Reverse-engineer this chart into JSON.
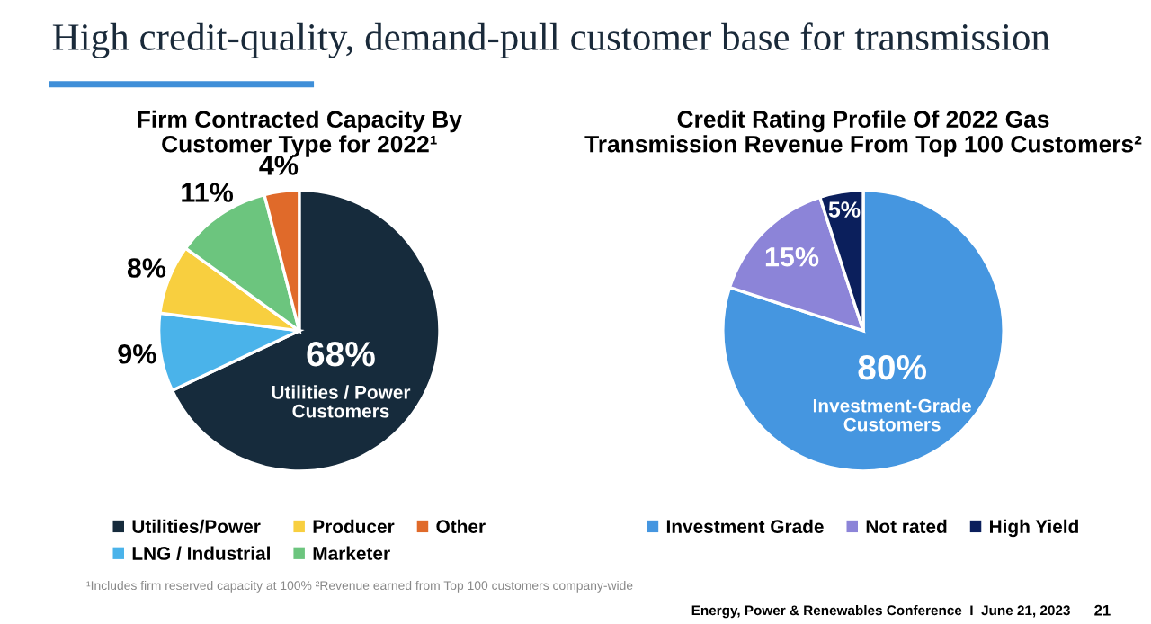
{
  "chart_data": [
    {
      "type": "pie",
      "title": "Firm Contracted Capacity By\nCustomer Type for 2022¹",
      "categories": [
        "Utilities/Power",
        "LNG / Industrial",
        "Producer",
        "Marketer",
        "Other"
      ],
      "values": [
        68,
        9,
        8,
        11,
        4
      ],
      "colors": [
        "#162b3c",
        "#4ab3ea",
        "#f8cf3f",
        "#6cc57e",
        "#e06a2a"
      ],
      "value_labels": [
        "68%",
        "9%",
        "8%",
        "11%",
        "4%"
      ],
      "legend": "bottom",
      "annotations": [
        "High credit-quality, demand-pull customer base for transmission",
        {
          "text": "Utilities / Power\nCustomers",
          "x": "Utilities/Power"
        }
      ]
    },
    {
      "type": "pie",
      "title": "Credit Rating Profile Of 2022 Gas\nTransmission Revenue From Top 100 Customers²",
      "categories": [
        "Investment Grade",
        "Not rated",
        "High Yield"
      ],
      "values": [
        80,
        15,
        5
      ],
      "colors": [
        "#4596e0",
        "#8c84d8",
        "#0b1f5c"
      ],
      "value_labels": [
        "80%",
        "15%",
        "5%"
      ],
      "legend": "bottom",
      "annotations": [
        {
          "text": "Investment-Grade\nCustomers",
          "x": "Investment Grade"
        },
        "¹Includes firm reserved capacity at 100% ²Revenue earned from Top 100 customers company-wide",
        "Energy, Power & Renewables Conference  I  June 21, 2023",
        "21"
      ]
    }
  ]
}
